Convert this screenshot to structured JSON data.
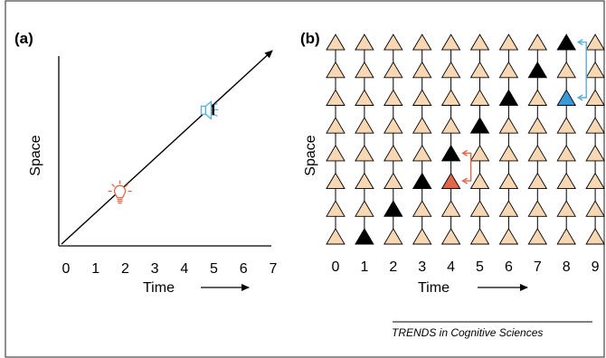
{
  "panel_a": {
    "label": "(a)",
    "x_axis_title": "Time",
    "y_axis_title": "Space",
    "x_ticks": [
      "0",
      "1",
      "2",
      "3",
      "4",
      "5",
      "6",
      "7"
    ],
    "bulb_time": 2,
    "speaker_time": 5,
    "bulb_icon": "lightbulb-icon",
    "speaker_icon": "speaker-icon",
    "colors": {
      "bulb": "#e2674a",
      "speaker": "#5aaee0"
    }
  },
  "panel_b": {
    "label": "(b)",
    "x_axis_title": "Time",
    "y_axis_title": "Space",
    "x_ticks": [
      "0",
      "1",
      "2",
      "3",
      "4",
      "5",
      "6",
      "7",
      "8",
      "9"
    ],
    "columns": 10,
    "rows": 8,
    "black_cells": [
      [
        1,
        0
      ],
      [
        2,
        1
      ],
      [
        3,
        2
      ],
      [
        4,
        3
      ],
      [
        5,
        4
      ],
      [
        6,
        5
      ],
      [
        7,
        6
      ],
      [
        8,
        7
      ]
    ],
    "red_cell": [
      4,
      2
    ],
    "blue_cell": [
      8,
      5
    ],
    "colors": {
      "neuron": "#f7d7b4",
      "active": "#000000",
      "red": "#e2674a",
      "blue": "#3a9ad8",
      "bracket_red": "#e2674a",
      "bracket_blue": "#5aaee0"
    }
  },
  "credit": "TRENDS in Cognitive Sciences"
}
